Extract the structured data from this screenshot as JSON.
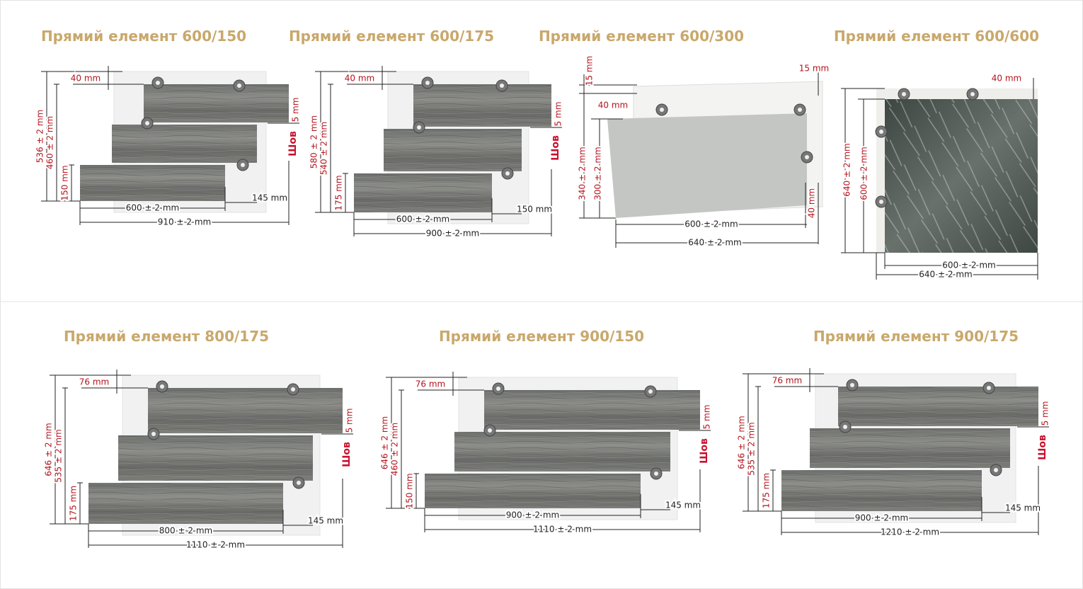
{
  "panels": [
    {
      "title": "Прямий елемент 600/150",
      "labels": [
        "40 mm",
        "536 ± 2 mm",
        "460 ± 2 mm",
        "150 mm",
        "Шов",
        "5 mm",
        "600 ± 2 mm",
        "145 mm",
        "910 ± 2 mm"
      ]
    },
    {
      "title": "Прямий елемент 600/175",
      "labels": [
        "40 mm",
        "580 ± 2 mm",
        "540 ± 2 mm",
        "175 mm",
        "Шов",
        "5 mm",
        "600 ± 2 mm",
        "150 mm",
        "900 ± 2 mm"
      ]
    },
    {
      "title": "Прямий елемент 600/300",
      "labels": [
        "15 mm",
        "40 mm",
        "340 ± 2 mm",
        "300 ± 2 mm",
        "15 mm",
        "40 mm",
        "600 ± 2 mm",
        "640 ± 2 mm"
      ]
    },
    {
      "title": "Прямий елемент 600/600",
      "labels": [
        "40 mm",
        "640 ± 2 mm",
        "600 ± 2 mm",
        "600 ± 2 mm",
        "640 ± 2 mm"
      ]
    },
    {
      "title": "Прямий елемент 800/175",
      "labels": [
        "76 mm",
        "646 ± 2 mm",
        "535 ± 2 mm",
        "175 mm",
        "Шов",
        "5 mm",
        "800 ± 2 mm",
        "145 mm",
        "1110 ± 2 mm"
      ]
    },
    {
      "title": "Прямий елемент 900/150",
      "labels": [
        "76 mm",
        "646 ± 2 mm",
        "460 ± 2 mm",
        "150 mm",
        "Шов",
        "5 mm",
        "900 ± 2 mm",
        "145 mm",
        "1110 ± 2 mm"
      ]
    },
    {
      "title": "Прямий елемент 900/175",
      "labels": [
        "76 mm",
        "646 ± 2 mm",
        "535 ± 2 mm",
        "175 mm",
        "Шов",
        "5 mm",
        "900 ± 2 mm",
        "145 mm",
        "1210 ± 2 mm"
      ]
    }
  ]
}
